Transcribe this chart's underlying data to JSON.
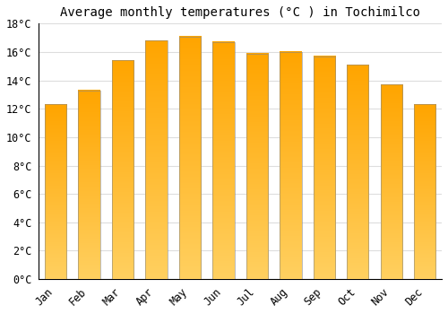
{
  "title": "Average monthly temperatures (°C ) in Tochimilco",
  "months": [
    "Jan",
    "Feb",
    "Mar",
    "Apr",
    "May",
    "Jun",
    "Jul",
    "Aug",
    "Sep",
    "Oct",
    "Nov",
    "Dec"
  ],
  "values": [
    12.3,
    13.3,
    15.4,
    16.8,
    17.1,
    16.7,
    15.9,
    16.0,
    15.7,
    15.1,
    13.7,
    12.3
  ],
  "bar_color_top": "#FFA500",
  "bar_color_bottom": "#FFD060",
  "background_color": "#FFFFFF",
  "grid_color": "#DDDDDD",
  "ylim": [
    0,
    18
  ],
  "ytick_step": 2,
  "title_fontsize": 10,
  "tick_fontsize": 8.5,
  "bar_width": 0.65
}
